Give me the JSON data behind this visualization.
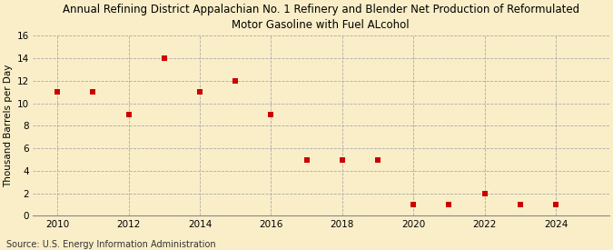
{
  "title_line1": "Annual Refining District Appalachian No. 1 Refinery and Blender Net Production of Reformulated",
  "title_line2": "Motor Gasoline with Fuel ALcohol",
  "ylabel": "Thousand Barrels per Day",
  "source": "Source: U.S. Energy Information Administration",
  "background_color": "#faeec8",
  "years": [
    2010,
    2011,
    2012,
    2013,
    2014,
    2015,
    2016,
    2017,
    2018,
    2019,
    2020,
    2021,
    2022,
    2023,
    2024
  ],
  "values": [
    11,
    11,
    9,
    14,
    11,
    12,
    9,
    5,
    5,
    5,
    1,
    1,
    2,
    1,
    1
  ],
  "marker_color": "#cc0000",
  "marker": "s",
  "marker_size": 4,
  "xlim": [
    2009.3,
    2025.5
  ],
  "ylim": [
    0,
    16
  ],
  "yticks": [
    0,
    2,
    4,
    6,
    8,
    10,
    12,
    14,
    16
  ],
  "xticks": [
    2010,
    2012,
    2014,
    2016,
    2018,
    2020,
    2022,
    2024
  ],
  "grid_color": "#aaaaaa",
  "grid_linestyle": "--",
  "title_fontsize": 8.5,
  "ylabel_fontsize": 7.5,
  "tick_fontsize": 7.5,
  "source_fontsize": 7.0
}
